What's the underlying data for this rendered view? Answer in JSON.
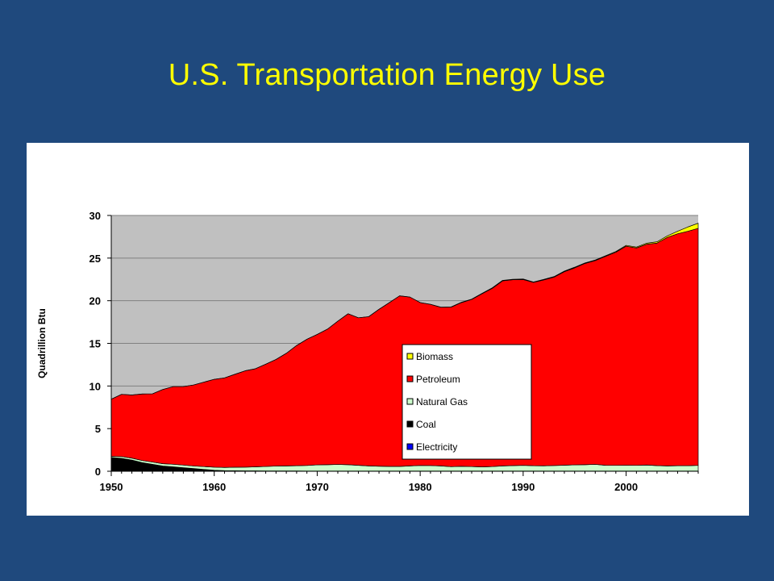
{
  "slide": {
    "title": "U.S. Transportation Energy Use"
  },
  "colors": {
    "background": "#1f497d",
    "title": "#ffff00",
    "plot_area": "#c0c0c0",
    "Biomass": "#ffff00",
    "Petroleum": "#ff0000",
    "Natural Gas": "#ccffcc",
    "Coal": "#000000",
    "Electricity": "#0000ff"
  },
  "chart_data": {
    "type": "area",
    "stacked": true,
    "title": "",
    "xlabel": "",
    "ylabel": "Quadrillion Btu",
    "xlim": [
      1950,
      2007
    ],
    "ylim": [
      0,
      30
    ],
    "grid": "horizontal",
    "legend_position": "center-right",
    "x_ticks": [
      1950,
      1960,
      1970,
      1980,
      1990,
      2000
    ],
    "y_ticks": [
      0,
      5,
      10,
      15,
      20,
      25,
      30
    ],
    "x": [
      1950,
      1951,
      1952,
      1953,
      1954,
      1955,
      1956,
      1957,
      1958,
      1959,
      1960,
      1961,
      1962,
      1963,
      1964,
      1965,
      1966,
      1967,
      1968,
      1969,
      1970,
      1971,
      1972,
      1973,
      1974,
      1975,
      1976,
      1977,
      1978,
      1979,
      1980,
      1981,
      1982,
      1983,
      1984,
      1985,
      1986,
      1987,
      1988,
      1989,
      1990,
      1991,
      1992,
      1993,
      1994,
      1995,
      1996,
      1997,
      1998,
      1999,
      2000,
      2001,
      2002,
      2003,
      2004,
      2005,
      2006,
      2007
    ],
    "series": [
      {
        "name": "Electricity",
        "values": [
          0.02,
          0.02,
          0.02,
          0.02,
          0.02,
          0.02,
          0.02,
          0.02,
          0.02,
          0.02,
          0.02,
          0.02,
          0.02,
          0.02,
          0.02,
          0.02,
          0.02,
          0.02,
          0.02,
          0.02,
          0.02,
          0.02,
          0.02,
          0.02,
          0.02,
          0.02,
          0.02,
          0.02,
          0.02,
          0.02,
          0.02,
          0.02,
          0.02,
          0.02,
          0.02,
          0.02,
          0.02,
          0.02,
          0.02,
          0.02,
          0.02,
          0.02,
          0.02,
          0.02,
          0.02,
          0.02,
          0.02,
          0.02,
          0.02,
          0.02,
          0.02,
          0.02,
          0.02,
          0.02,
          0.02,
          0.02,
          0.02,
          0.02
        ]
      },
      {
        "name": "Coal",
        "values": [
          1.6,
          1.5,
          1.3,
          1.0,
          0.8,
          0.6,
          0.5,
          0.4,
          0.3,
          0.2,
          0.1,
          0.05,
          0.04,
          0.03,
          0.03,
          0.02,
          0.02,
          0.02,
          0.02,
          0.01,
          0.01,
          0.01,
          0.01,
          0.01,
          0.01,
          0.01,
          0.01,
          0.01,
          0.01,
          0.01,
          0.01,
          0.01,
          0.01,
          0.01,
          0.01,
          0.01,
          0.01,
          0.01,
          0.01,
          0.01,
          0.01,
          0.01,
          0.01,
          0.01,
          0.01,
          0.01,
          0.01,
          0.01,
          0.01,
          0.01,
          0.01,
          0.01,
          0.01,
          0.01,
          0.01,
          0.01,
          0.01,
          0.01
        ]
      },
      {
        "name": "Natural Gas",
        "values": [
          0.13,
          0.2,
          0.22,
          0.24,
          0.26,
          0.27,
          0.3,
          0.31,
          0.3,
          0.33,
          0.36,
          0.38,
          0.41,
          0.43,
          0.47,
          0.52,
          0.57,
          0.59,
          0.61,
          0.65,
          0.72,
          0.74,
          0.77,
          0.74,
          0.67,
          0.6,
          0.56,
          0.54,
          0.54,
          0.6,
          0.65,
          0.64,
          0.6,
          0.51,
          0.55,
          0.52,
          0.48,
          0.52,
          0.6,
          0.63,
          0.66,
          0.62,
          0.61,
          0.64,
          0.68,
          0.72,
          0.74,
          0.78,
          0.67,
          0.66,
          0.67,
          0.66,
          0.7,
          0.63,
          0.6,
          0.62,
          0.62,
          0.66
        ]
      },
      {
        "name": "Petroleum",
        "values": [
          6.7,
          7.3,
          7.4,
          7.8,
          8.0,
          8.7,
          9.1,
          9.2,
          9.5,
          9.9,
          10.3,
          10.5,
          10.9,
          11.3,
          11.5,
          12.0,
          12.5,
          13.2,
          14.1,
          14.8,
          15.3,
          15.9,
          16.8,
          17.7,
          17.3,
          17.5,
          18.4,
          19.2,
          20.0,
          19.8,
          19.1,
          18.9,
          18.6,
          18.7,
          19.2,
          19.6,
          20.3,
          20.9,
          21.7,
          21.8,
          21.8,
          21.5,
          21.8,
          22.1,
          22.7,
          23.1,
          23.6,
          23.9,
          24.5,
          25.0,
          25.7,
          25.5,
          25.9,
          26.1,
          26.8,
          27.2,
          27.5,
          27.8
        ]
      },
      {
        "name": "Biomass",
        "values": [
          0,
          0,
          0,
          0,
          0,
          0,
          0,
          0,
          0,
          0,
          0,
          0,
          0,
          0,
          0,
          0,
          0,
          0,
          0,
          0,
          0,
          0,
          0,
          0,
          0,
          0,
          0,
          0,
          0,
          0,
          0,
          0.01,
          0.02,
          0.03,
          0.04,
          0.04,
          0.05,
          0.06,
          0.06,
          0.06,
          0.06,
          0.05,
          0.06,
          0.06,
          0.07,
          0.08,
          0.06,
          0.07,
          0.07,
          0.08,
          0.09,
          0.1,
          0.12,
          0.15,
          0.17,
          0.3,
          0.5,
          0.6
        ]
      }
    ]
  }
}
